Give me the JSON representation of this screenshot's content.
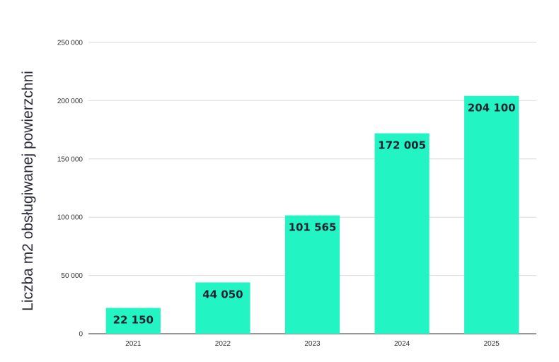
{
  "chart_data": {
    "type": "bar",
    "categories": [
      "2021",
      "2022",
      "2023",
      "2024",
      "2025"
    ],
    "values": [
      22150,
      44050,
      101565,
      172005,
      204100
    ],
    "data_labels": [
      "22 150",
      "44 050",
      "101 565",
      "172 005",
      "204 100"
    ],
    "title": "",
    "xlabel": "",
    "ylabel": "Liczba m2 obsługiwanej powierzchni",
    "ylim": [
      0,
      250000
    ],
    "yticks": [
      0,
      50000,
      100000,
      150000,
      200000,
      250000
    ],
    "ytick_labels": [
      "0",
      "50 000",
      "100 000",
      "150 000",
      "200 000",
      "250 000"
    ],
    "grid": true,
    "legend": "none",
    "bar_color": "#22f5c3"
  }
}
